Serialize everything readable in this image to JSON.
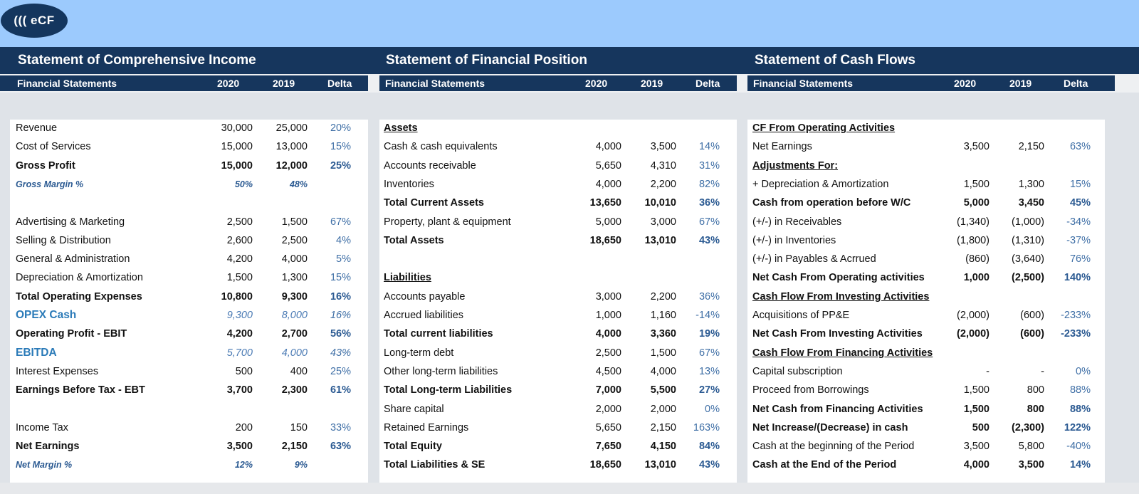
{
  "logo": {
    "text": "((( eCF"
  },
  "sections": [
    {
      "title": "Statement of Comprehensive Income",
      "headers": [
        "Financial Statements",
        "2020",
        "2019",
        "Delta"
      ],
      "rows": [
        {
          "label": "Revenue",
          "y2020": "30,000",
          "y2019": "25,000",
          "delta": "20%",
          "style": "normal"
        },
        {
          "label": "Cost of Services",
          "y2020": "15,000",
          "y2019": "13,000",
          "delta": "15%",
          "style": "normal"
        },
        {
          "label": "Gross Profit",
          "y2020": "15,000",
          "y2019": "12,000",
          "delta": "25%",
          "style": "bold"
        },
        {
          "label": "Gross Margin %",
          "y2020": "50%",
          "y2019": "48%",
          "delta": "",
          "style": "italic"
        },
        {
          "label": "",
          "y2020": "",
          "y2019": "",
          "delta": "",
          "style": "normal"
        },
        {
          "label": "Advertising & Marketing",
          "y2020": "2,500",
          "y2019": "1,500",
          "delta": "67%",
          "style": "normal"
        },
        {
          "label": "Selling & Distribution",
          "y2020": "2,600",
          "y2019": "2,500",
          "delta": "4%",
          "style": "normal"
        },
        {
          "label": "General & Administration",
          "y2020": "4,200",
          "y2019": "4,000",
          "delta": "5%",
          "style": "normal"
        },
        {
          "label": "Depreciation & Amortization",
          "y2020": "1,500",
          "y2019": "1,300",
          "delta": "15%",
          "style": "normal"
        },
        {
          "label": "Total Operating Expenses",
          "y2020": "10,800",
          "y2019": "9,300",
          "delta": "16%",
          "style": "bold"
        },
        {
          "label": "OPEX Cash",
          "y2020": "9,300",
          "y2019": "8,000",
          "delta": "16%",
          "style": "accent"
        },
        {
          "label": "Operating Profit - EBIT",
          "y2020": "4,200",
          "y2019": "2,700",
          "delta": "56%",
          "style": "bold"
        },
        {
          "label": "EBITDA",
          "y2020": "5,700",
          "y2019": "4,000",
          "delta": "43%",
          "style": "accent"
        },
        {
          "label": "Interest Expenses",
          "y2020": "500",
          "y2019": "400",
          "delta": "25%",
          "style": "normal"
        },
        {
          "label": "Earnings Before Tax - EBT",
          "y2020": "3,700",
          "y2019": "2,300",
          "delta": "61%",
          "style": "bold"
        },
        {
          "label": "",
          "y2020": "",
          "y2019": "",
          "delta": "",
          "style": "normal"
        },
        {
          "label": "Income Tax",
          "y2020": "200",
          "y2019": "150",
          "delta": "33%",
          "style": "normal"
        },
        {
          "label": "Net Earnings",
          "y2020": "3,500",
          "y2019": "2,150",
          "delta": "63%",
          "style": "bold"
        },
        {
          "label": "Net Margin %",
          "y2020": "12%",
          "y2019": "9%",
          "delta": "",
          "style": "italic"
        }
      ]
    },
    {
      "title": "Statement of Financial Position",
      "headers": [
        "Financial Statements",
        "2020",
        "2019",
        "Delta"
      ],
      "rows": [
        {
          "label": "Assets",
          "y2020": "",
          "y2019": "",
          "delta": "",
          "style": "header"
        },
        {
          "label": "Cash & cash equivalents",
          "y2020": "4,000",
          "y2019": "3,500",
          "delta": "14%",
          "style": "normal"
        },
        {
          "label": "Accounts receivable",
          "y2020": "5,650",
          "y2019": "4,310",
          "delta": "31%",
          "style": "normal"
        },
        {
          "label": "Inventories",
          "y2020": "4,000",
          "y2019": "2,200",
          "delta": "82%",
          "style": "normal"
        },
        {
          "label": "Total Current Assets",
          "y2020": "13,650",
          "y2019": "10,010",
          "delta": "36%",
          "style": "bold"
        },
        {
          "label": "Property, plant & equipment",
          "y2020": "5,000",
          "y2019": "3,000",
          "delta": "67%",
          "style": "normal"
        },
        {
          "label": "Total Assets",
          "y2020": "18,650",
          "y2019": "13,010",
          "delta": "43%",
          "style": "bold"
        },
        {
          "label": "",
          "y2020": "",
          "y2019": "",
          "delta": "",
          "style": "normal"
        },
        {
          "label": "Liabilities",
          "y2020": "",
          "y2019": "",
          "delta": "",
          "style": "header"
        },
        {
          "label": "Accounts payable",
          "y2020": "3,000",
          "y2019": "2,200",
          "delta": "36%",
          "style": "normal"
        },
        {
          "label": "Accrued liabilities",
          "y2020": "1,000",
          "y2019": "1,160",
          "delta": "-14%",
          "style": "normal"
        },
        {
          "label": "Total current liabilities",
          "y2020": "4,000",
          "y2019": "3,360",
          "delta": "19%",
          "style": "bold"
        },
        {
          "label": "Long-term debt",
          "y2020": "2,500",
          "y2019": "1,500",
          "delta": "67%",
          "style": "normal"
        },
        {
          "label": "Other long-term liabilities",
          "y2020": "4,500",
          "y2019": "4,000",
          "delta": "13%",
          "style": "normal"
        },
        {
          "label": "Total Long-term Liabilities",
          "y2020": "7,000",
          "y2019": "5,500",
          "delta": "27%",
          "style": "bold"
        },
        {
          "label": "Share capital",
          "y2020": "2,000",
          "y2019": "2,000",
          "delta": "0%",
          "style": "normal"
        },
        {
          "label": "Retained Earnings",
          "y2020": "5,650",
          "y2019": "2,150",
          "delta": "163%",
          "style": "normal"
        },
        {
          "label": "Total Equity",
          "y2020": "7,650",
          "y2019": "4,150",
          "delta": "84%",
          "style": "bold"
        },
        {
          "label": "Total Liabilities & SE",
          "y2020": "18,650",
          "y2019": "13,010",
          "delta": "43%",
          "style": "bold"
        }
      ]
    },
    {
      "title": "Statement of Cash Flows",
      "headers": [
        "Financial Statements",
        "2020",
        "2019",
        "Delta"
      ],
      "rows": [
        {
          "label": "CF From Operating Activities",
          "y2020": "",
          "y2019": "",
          "delta": "",
          "style": "header"
        },
        {
          "label": "Net Earnings",
          "y2020": "3,500",
          "y2019": "2,150",
          "delta": "63%",
          "style": "normal"
        },
        {
          "label": "Adjustments For:",
          "y2020": "",
          "y2019": "",
          "delta": "",
          "style": "header"
        },
        {
          "label": "+ Depreciation & Amortization",
          "y2020": "1,500",
          "y2019": "1,300",
          "delta": "15%",
          "style": "normal"
        },
        {
          "label": "Cash from operation before W/C",
          "y2020": "5,000",
          "y2019": "3,450",
          "delta": "45%",
          "style": "bold"
        },
        {
          "label": "(+/-) in Receivables",
          "y2020": "(1,340)",
          "y2019": "(1,000)",
          "delta": "-34%",
          "style": "normal"
        },
        {
          "label": "(+/-) in Inventories",
          "y2020": "(1,800)",
          "y2019": "(1,310)",
          "delta": "-37%",
          "style": "normal"
        },
        {
          "label": "(+/-) in Payables & Acrrued",
          "y2020": "(860)",
          "y2019": "(3,640)",
          "delta": "76%",
          "style": "normal"
        },
        {
          "label": "Net Cash From Operating activities",
          "y2020": "1,000",
          "y2019": "(2,500)",
          "delta": "140%",
          "style": "bold"
        },
        {
          "label": "Cash Flow From Investing Activities",
          "y2020": "",
          "y2019": "",
          "delta": "",
          "style": "header"
        },
        {
          "label": "Acquisitions of PP&E",
          "y2020": "(2,000)",
          "y2019": "(600)",
          "delta": "-233%",
          "style": "normal"
        },
        {
          "label": "Net Cash From Investing Activities",
          "y2020": "(2,000)",
          "y2019": "(600)",
          "delta": "-233%",
          "style": "bold"
        },
        {
          "label": "Cash Flow From Financing Activities",
          "y2020": "",
          "y2019": "",
          "delta": "",
          "style": "header"
        },
        {
          "label": "Capital subscription",
          "y2020": "-",
          "y2019": "-",
          "delta": "0%",
          "style": "normal"
        },
        {
          "label": "Proceed from Borrowings",
          "y2020": "1,500",
          "y2019": "800",
          "delta": "88%",
          "style": "normal"
        },
        {
          "label": "Net Cash from Financing Activities",
          "y2020": "1,500",
          "y2019": "800",
          "delta": "88%",
          "style": "bold"
        },
        {
          "label": "Net Increase/(Decrease) in cash",
          "y2020": "500",
          "y2019": "(2,300)",
          "delta": "122%",
          "style": "bold"
        },
        {
          "label": "Cash at the beginning of the Period",
          "y2020": "3,500",
          "y2019": "5,800",
          "delta": "-40%",
          "style": "normal"
        },
        {
          "label": "Cash at the End of the Period",
          "y2020": "4,000",
          "y2019": "3,500",
          "delta": "14%",
          "style": "bold"
        }
      ]
    }
  ]
}
